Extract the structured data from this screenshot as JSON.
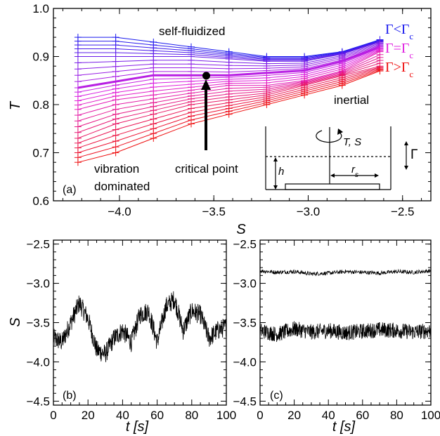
{
  "chart_data": [
    {
      "panel": "(a)",
      "type": "line",
      "xlabel": "S",
      "ylabel": "T",
      "xlim": [
        -4.35,
        -2.35
      ],
      "ylim": [
        0.6,
        1.0
      ],
      "xticks": [
        "−4.0",
        "−3.5",
        "−3.0",
        "−2.5"
      ],
      "yticks": [
        "0.6",
        "0.7",
        "0.8",
        "0.9",
        "1.0"
      ],
      "x_points": [
        -4.22,
        -4.02,
        -3.82,
        -3.62,
        -3.42,
        -3.22,
        -3.02,
        -2.82,
        -2.62
      ],
      "series": [
        {
          "values": [
            0.94,
            0.94,
            0.93,
            0.92,
            0.91,
            0.9,
            0.9,
            0.91,
            0.935
          ]
        },
        {
          "values": [
            0.9,
            0.9,
            0.9,
            0.9,
            0.895,
            0.89,
            0.89,
            0.905,
            0.93
          ]
        },
        {
          "values": [
            0.835,
            0.848,
            0.861,
            0.861,
            0.861,
            0.866,
            0.871,
            0.89,
            0.92
          ]
        },
        {
          "values": [
            0.79,
            0.81,
            0.82,
            0.83,
            0.84,
            0.84,
            0.85,
            0.87,
            0.91
          ]
        },
        {
          "values": [
            0.73,
            0.76,
            0.78,
            0.8,
            0.81,
            0.82,
            0.84,
            0.86,
            0.88
          ]
        },
        {
          "values": [
            0.68,
            0.7,
            0.73,
            0.76,
            0.78,
            0.8,
            0.82,
            0.84,
            0.87
          ]
        }
      ],
      "critical_point": {
        "x": -3.54,
        "y": 0.86
      },
      "annotations": {
        "self_fluidized": "self-fluidized",
        "inertial": "inertial",
        "vibration": "vibration",
        "dominated": "dominated",
        "critical_point": "critical point"
      },
      "legend": {
        "less": {
          "label": "Γ<Γ",
          "sub": "c",
          "color": "#1a1aee"
        },
        "equal": {
          "label": "Γ=Γ",
          "sub": "c",
          "color": "#e020e0"
        },
        "greater": {
          "label": "Γ>Γ",
          "sub": "c",
          "color": "#ee1111"
        }
      },
      "inset": {
        "ts_label": "T, S",
        "h_label": "h",
        "r_label": "r",
        "r_sub": "s",
        "gamma_label": "Γ"
      }
    },
    {
      "panel": "(b)",
      "type": "line",
      "xlabel": "t [s]",
      "ylabel": "S",
      "xlim": [
        0,
        100
      ],
      "ylim": [
        -4.55,
        -2.45
      ],
      "xticks": [
        "0",
        "20",
        "40",
        "60",
        "80",
        "100"
      ],
      "yticks": [
        "−2.5",
        "−3.0",
        "−3.5",
        "−4.0",
        "−4.5"
      ],
      "series": [
        {
          "name": "",
          "x": [
            0,
            5,
            10,
            15,
            20,
            25,
            30,
            35,
            40,
            45,
            50,
            55,
            60,
            65,
            70,
            75,
            80,
            85,
            90,
            95,
            100
          ],
          "values": [
            -3.7,
            -3.75,
            -3.5,
            -3.25,
            -3.45,
            -3.85,
            -3.9,
            -3.7,
            -3.6,
            -3.75,
            -3.4,
            -3.35,
            -3.75,
            -3.3,
            -3.2,
            -3.6,
            -3.35,
            -3.4,
            -3.7,
            -3.6,
            -3.55
          ]
        }
      ]
    },
    {
      "panel": "(c)",
      "type": "line",
      "xlabel": "t [s]",
      "ylabel": "",
      "xlim": [
        0,
        100
      ],
      "ylim": [
        -4.55,
        -2.45
      ],
      "xticks": [
        "0",
        "20",
        "40",
        "60",
        "80",
        "100"
      ],
      "yticks": [
        "−2.5",
        "−3.0",
        "−3.5",
        "−4.0",
        "−4.5"
      ],
      "series": [
        {
          "name": "",
          "x": [
            0,
            10,
            20,
            30,
            40,
            50,
            60,
            70,
            80,
            90,
            100
          ],
          "values": [
            -2.84,
            -2.86,
            -2.85,
            -2.88,
            -2.87,
            -2.85,
            -2.86,
            -2.87,
            -2.85,
            -2.86,
            -2.84
          ]
        },
        {
          "name": "",
          "x": [
            0,
            10,
            20,
            30,
            40,
            50,
            60,
            70,
            80,
            90,
            100
          ],
          "values": [
            -3.6,
            -3.65,
            -3.58,
            -3.62,
            -3.6,
            -3.63,
            -3.61,
            -3.59,
            -3.6,
            -3.62,
            -3.6
          ]
        }
      ]
    }
  ]
}
